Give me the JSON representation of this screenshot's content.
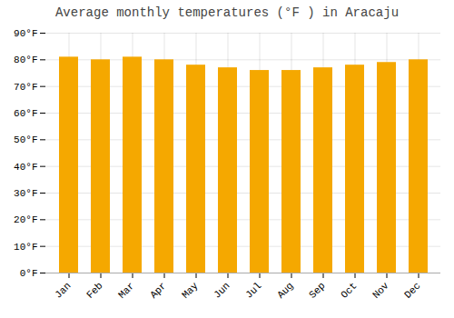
{
  "chart_data": {
    "type": "bar",
    "title": "Average monthly temperatures (°F ) in Aracaju",
    "categories": [
      "Jan",
      "Feb",
      "Mar",
      "Apr",
      "May",
      "Jun",
      "Jul",
      "Aug",
      "Sep",
      "Oct",
      "Nov",
      "Dec"
    ],
    "values": [
      81,
      80,
      81,
      80,
      78,
      77,
      76,
      76,
      77,
      78,
      79,
      80
    ],
    "color": "#F5A800",
    "ylim": [
      0,
      90
    ],
    "yticks": [
      {
        "value": 0,
        "label": "0°F"
      },
      {
        "value": 10,
        "label": "10°F"
      },
      {
        "value": 20,
        "label": "20°F"
      },
      {
        "value": 30,
        "label": "30°F"
      },
      {
        "value": 40,
        "label": "40°F"
      },
      {
        "value": 50,
        "label": "50°F"
      },
      {
        "value": 60,
        "label": "60°F"
      },
      {
        "value": 70,
        "label": "70°F"
      },
      {
        "value": 80,
        "label": "80°F"
      },
      {
        "value": 90,
        "label": "90°F"
      }
    ],
    "grid": true
  }
}
